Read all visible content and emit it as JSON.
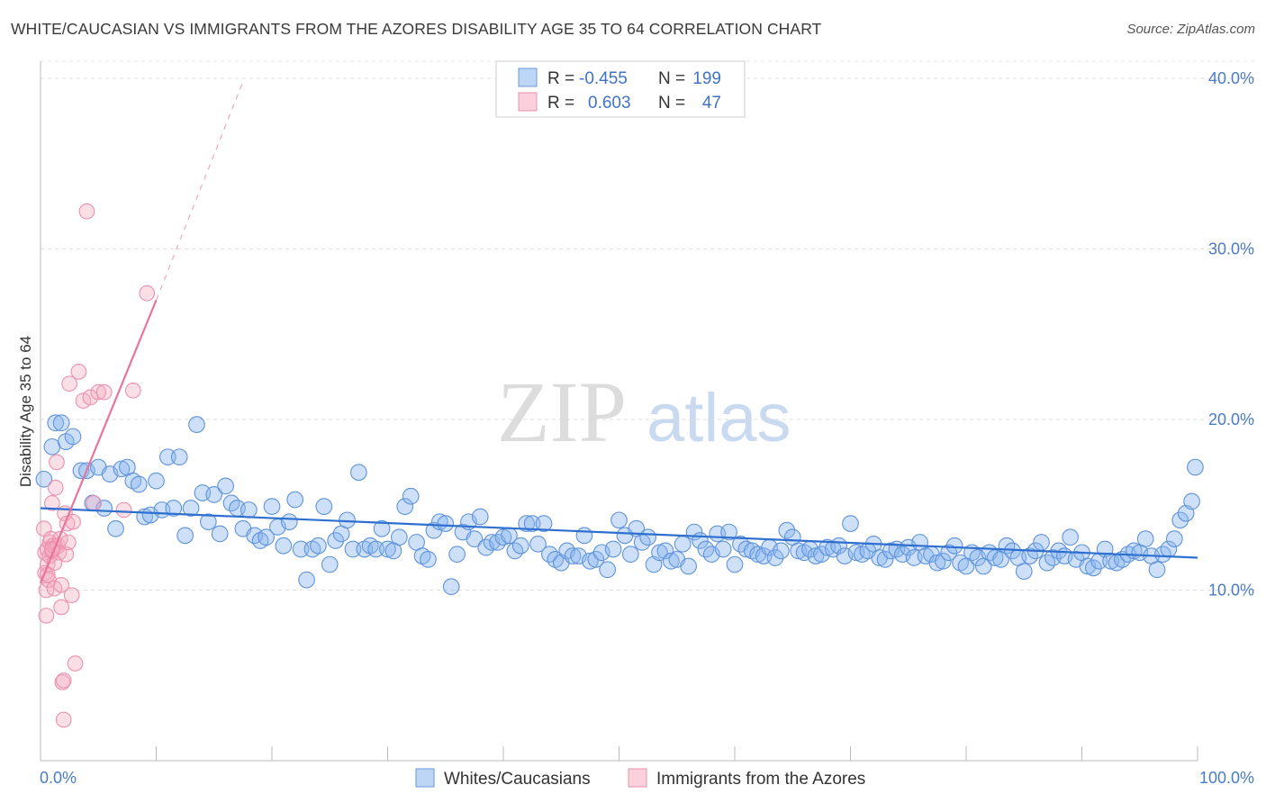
{
  "title": "WHITE/CAUCASIAN VS IMMIGRANTS FROM THE AZORES DISABILITY AGE 35 TO 64 CORRELATION CHART",
  "source": "Source: ZipAtlas.com",
  "watermark": {
    "zip": "ZIP",
    "atlas": "atlas"
  },
  "colors": {
    "blue": "#4a7fd4",
    "blue_fill": "rgba(135,180,238,0.42)",
    "pink": "#e8759b",
    "pink_fill": "rgba(244,170,192,0.38)",
    "tick": "#4a7cc4"
  },
  "legend": {
    "rows": [
      {
        "r_label": "R =",
        "r_value": "-0.455",
        "n_label": "N =",
        "n_value": "199"
      },
      {
        "r_label": "R =",
        "r_value": "0.603",
        "n_label": "N =",
        "n_value": "47"
      }
    ]
  },
  "chart_data": {
    "type": "scatter",
    "title": "WHITE/CAUCASIAN VS IMMIGRANTS FROM THE AZORES DISABILITY AGE 35 TO 64 CORRELATION CHART",
    "xlabel": "",
    "ylabel": "Disability Age 35 to 64",
    "xlim": [
      0,
      100
    ],
    "ylim": [
      0,
      41
    ],
    "y_ticks": [
      10,
      20,
      30,
      40
    ],
    "y_tick_labels": [
      "10.0%",
      "20.0%",
      "30.0%",
      "40.0%"
    ],
    "x_tick_labels": [
      "0.0%",
      "100.0%"
    ],
    "grid": true,
    "series": [
      {
        "name": "Whites/Caucasians",
        "r": -0.455,
        "n": 199,
        "trend": {
          "x": [
            0,
            100
          ],
          "y": [
            14.8,
            11.9
          ]
        },
        "points": [
          [
            0.3,
            16.5
          ],
          [
            1.0,
            18.4
          ],
          [
            1.3,
            19.8
          ],
          [
            1.8,
            19.8
          ],
          [
            2.2,
            18.7
          ],
          [
            2.8,
            19.0
          ],
          [
            3.5,
            17.0
          ],
          [
            4.0,
            17.0
          ],
          [
            4.5,
            15.1
          ],
          [
            5.0,
            17.2
          ],
          [
            5.5,
            14.8
          ],
          [
            6.0,
            16.8
          ],
          [
            6.5,
            13.6
          ],
          [
            7.0,
            17.1
          ],
          [
            7.5,
            17.2
          ],
          [
            8.0,
            16.4
          ],
          [
            8.5,
            16.2
          ],
          [
            9.0,
            14.3
          ],
          [
            9.5,
            14.4
          ],
          [
            10.0,
            16.4
          ],
          [
            10.5,
            14.7
          ],
          [
            11.0,
            17.8
          ],
          [
            11.5,
            14.8
          ],
          [
            12.0,
            17.8
          ],
          [
            12.5,
            13.2
          ],
          [
            13.0,
            14.8
          ],
          [
            13.5,
            19.7
          ],
          [
            14.0,
            15.7
          ],
          [
            14.5,
            14.0
          ],
          [
            15.0,
            15.6
          ],
          [
            15.5,
            13.3
          ],
          [
            16.0,
            16.1
          ],
          [
            16.5,
            15.1
          ],
          [
            17.0,
            14.8
          ],
          [
            17.5,
            13.6
          ],
          [
            18.0,
            14.7
          ],
          [
            18.5,
            13.2
          ],
          [
            19.0,
            12.9
          ],
          [
            19.5,
            13.1
          ],
          [
            20.0,
            14.9
          ],
          [
            20.5,
            13.7
          ],
          [
            21.0,
            12.6
          ],
          [
            21.5,
            14.0
          ],
          [
            22.0,
            15.3
          ],
          [
            22.5,
            12.4
          ],
          [
            23.0,
            10.6
          ],
          [
            23.5,
            12.4
          ],
          [
            24.0,
            12.6
          ],
          [
            24.5,
            14.9
          ],
          [
            25.0,
            11.5
          ],
          [
            25.5,
            12.9
          ],
          [
            26.0,
            13.3
          ],
          [
            26.5,
            14.1
          ],
          [
            27.0,
            12.4
          ],
          [
            27.5,
            16.9
          ],
          [
            28.0,
            12.4
          ],
          [
            28.5,
            12.6
          ],
          [
            29.0,
            12.4
          ],
          [
            29.5,
            13.6
          ],
          [
            30.0,
            12.4
          ],
          [
            30.5,
            12.3
          ],
          [
            31.0,
            13.1
          ],
          [
            31.5,
            14.9
          ],
          [
            32.0,
            15.5
          ],
          [
            32.5,
            12.8
          ],
          [
            33.0,
            12.0
          ],
          [
            33.5,
            11.8
          ],
          [
            34.0,
            13.5
          ],
          [
            34.5,
            14.0
          ],
          [
            35.0,
            13.9
          ],
          [
            35.5,
            10.2
          ],
          [
            36.0,
            12.1
          ],
          [
            36.5,
            13.4
          ],
          [
            37.0,
            14.0
          ],
          [
            37.5,
            13.0
          ],
          [
            38.0,
            14.3
          ],
          [
            38.5,
            12.5
          ],
          [
            39.0,
            12.8
          ],
          [
            39.5,
            12.8
          ],
          [
            40.0,
            13.1
          ],
          [
            40.5,
            13.2
          ],
          [
            41.0,
            12.3
          ],
          [
            41.5,
            12.6
          ],
          [
            42.0,
            13.9
          ],
          [
            42.5,
            13.9
          ],
          [
            43.0,
            12.7
          ],
          [
            43.5,
            13.9
          ],
          [
            44.0,
            12.1
          ],
          [
            44.5,
            11.8
          ],
          [
            45.0,
            11.6
          ],
          [
            45.5,
            12.3
          ],
          [
            46.0,
            12.0
          ],
          [
            46.5,
            12.0
          ],
          [
            47.0,
            13.2
          ],
          [
            47.5,
            11.7
          ],
          [
            48.0,
            11.8
          ],
          [
            48.5,
            12.2
          ],
          [
            49.0,
            11.2
          ],
          [
            49.5,
            12.4
          ],
          [
            50.0,
            14.1
          ],
          [
            50.5,
            13.2
          ],
          [
            51.0,
            12.1
          ],
          [
            51.5,
            13.6
          ],
          [
            52.0,
            12.8
          ],
          [
            52.5,
            13.1
          ],
          [
            53.0,
            11.5
          ],
          [
            53.5,
            12.2
          ],
          [
            54.0,
            12.3
          ],
          [
            54.5,
            11.7
          ],
          [
            55.0,
            11.8
          ],
          [
            55.5,
            12.7
          ],
          [
            56.0,
            11.4
          ],
          [
            56.5,
            13.4
          ],
          [
            57.0,
            12.9
          ],
          [
            57.5,
            12.4
          ],
          [
            58.0,
            12.1
          ],
          [
            58.5,
            13.3
          ],
          [
            59.0,
            12.4
          ],
          [
            59.5,
            13.4
          ],
          [
            60.0,
            11.5
          ],
          [
            60.5,
            12.7
          ],
          [
            61.0,
            12.4
          ],
          [
            61.5,
            12.3
          ],
          [
            62.0,
            12.1
          ],
          [
            62.5,
            12.0
          ],
          [
            63.0,
            12.5
          ],
          [
            63.5,
            11.9
          ],
          [
            64.0,
            12.3
          ],
          [
            64.5,
            13.5
          ],
          [
            65.0,
            13.1
          ],
          [
            65.5,
            12.3
          ],
          [
            66.0,
            12.2
          ],
          [
            66.5,
            12.4
          ],
          [
            67.0,
            12.0
          ],
          [
            67.5,
            12.1
          ],
          [
            68.0,
            12.5
          ],
          [
            68.5,
            12.4
          ],
          [
            69.0,
            12.6
          ],
          [
            69.5,
            12.0
          ],
          [
            70.0,
            13.9
          ],
          [
            70.5,
            12.2
          ],
          [
            71.0,
            12.1
          ],
          [
            71.5,
            12.3
          ],
          [
            72.0,
            12.7
          ],
          [
            72.5,
            11.9
          ],
          [
            73.0,
            11.8
          ],
          [
            73.5,
            12.3
          ],
          [
            74.0,
            12.4
          ],
          [
            74.5,
            12.1
          ],
          [
            75.0,
            12.5
          ],
          [
            75.5,
            11.9
          ],
          [
            76.0,
            12.8
          ],
          [
            76.5,
            12.0
          ],
          [
            77.0,
            12.1
          ],
          [
            77.5,
            11.6
          ],
          [
            78.0,
            11.7
          ],
          [
            78.5,
            12.2
          ],
          [
            79.0,
            12.6
          ],
          [
            79.5,
            11.6
          ],
          [
            80.0,
            11.4
          ],
          [
            80.5,
            12.2
          ],
          [
            81.0,
            11.9
          ],
          [
            81.5,
            11.4
          ],
          [
            82.0,
            12.2
          ],
          [
            82.5,
            11.9
          ],
          [
            83.0,
            11.8
          ],
          [
            83.5,
            12.6
          ],
          [
            84.0,
            12.3
          ],
          [
            84.5,
            11.9
          ],
          [
            85.0,
            11.1
          ],
          [
            85.5,
            12.0
          ],
          [
            86.0,
            12.3
          ],
          [
            86.5,
            12.8
          ],
          [
            87.0,
            11.6
          ],
          [
            87.5,
            11.9
          ],
          [
            88.0,
            12.3
          ],
          [
            88.5,
            12.0
          ],
          [
            89.0,
            13.1
          ],
          [
            89.5,
            11.8
          ],
          [
            90.0,
            12.2
          ],
          [
            90.5,
            11.4
          ],
          [
            91.0,
            11.3
          ],
          [
            91.5,
            11.7
          ],
          [
            92.0,
            12.4
          ],
          [
            92.5,
            11.7
          ],
          [
            93.0,
            11.6
          ],
          [
            93.5,
            11.8
          ],
          [
            94.0,
            12.1
          ],
          [
            94.5,
            12.3
          ],
          [
            95.0,
            12.2
          ],
          [
            95.5,
            13.0
          ],
          [
            96.0,
            12.0
          ],
          [
            96.5,
            11.2
          ],
          [
            97.0,
            12.1
          ],
          [
            97.5,
            12.4
          ],
          [
            98.0,
            13.0
          ],
          [
            98.5,
            14.1
          ],
          [
            99.0,
            14.5
          ],
          [
            99.5,
            15.2
          ],
          [
            99.8,
            17.2
          ]
        ]
      },
      {
        "name": "Immigrants from the Azores",
        "r": 0.603,
        "n": 47,
        "trend": {
          "x": [
            0,
            10
          ],
          "y": [
            10.4,
            27.0
          ]
        },
        "trend_ext": {
          "x": [
            10,
            17.5
          ],
          "y": [
            27.0,
            39.8
          ]
        },
        "points": [
          [
            0.3,
            13.6
          ],
          [
            0.4,
            12.2
          ],
          [
            0.4,
            11.0
          ],
          [
            0.5,
            10.0
          ],
          [
            0.5,
            8.5
          ],
          [
            0.6,
            12.4
          ],
          [
            0.6,
            11.5
          ],
          [
            0.7,
            10.6
          ],
          [
            0.8,
            12.8
          ],
          [
            0.8,
            12.0
          ],
          [
            0.9,
            13.0
          ],
          [
            1.0,
            15.1
          ],
          [
            1.0,
            12.3
          ],
          [
            1.1,
            12.6
          ],
          [
            1.2,
            11.6
          ],
          [
            1.2,
            10.1
          ],
          [
            1.3,
            12.5
          ],
          [
            1.3,
            16.0
          ],
          [
            1.4,
            17.5
          ],
          [
            1.5,
            12.6
          ],
          [
            1.6,
            12.2
          ],
          [
            1.7,
            13.0
          ],
          [
            1.8,
            10.3
          ],
          [
            1.8,
            9.0
          ],
          [
            1.9,
            4.6
          ],
          [
            2.0,
            4.7
          ],
          [
            2.0,
            2.4
          ],
          [
            2.1,
            14.5
          ],
          [
            2.2,
            12.1
          ],
          [
            2.3,
            13.9
          ],
          [
            2.4,
            12.8
          ],
          [
            2.5,
            22.1
          ],
          [
            2.7,
            9.7
          ],
          [
            2.8,
            14.0
          ],
          [
            3.0,
            5.7
          ],
          [
            3.3,
            22.8
          ],
          [
            3.7,
            21.1
          ],
          [
            4.0,
            32.2
          ],
          [
            4.3,
            21.3
          ],
          [
            4.6,
            15.1
          ],
          [
            5.0,
            21.6
          ],
          [
            5.5,
            21.6
          ],
          [
            7.2,
            14.7
          ],
          [
            8.0,
            21.7
          ],
          [
            9.2,
            27.4
          ],
          [
            1.0,
            12.4
          ],
          [
            0.6,
            10.9
          ]
        ]
      }
    ]
  }
}
